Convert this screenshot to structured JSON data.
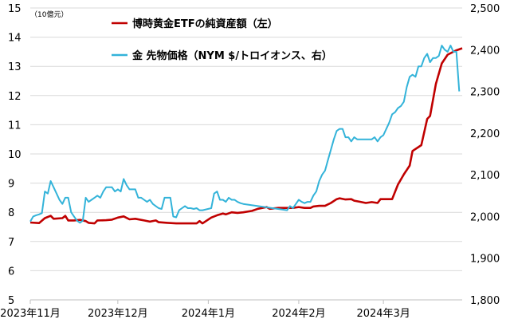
{
  "chart_data": {
    "type": "line",
    "unit_label": "（10億元）",
    "grid": true,
    "legend_position": "top",
    "y_left": {
      "min": 5,
      "max": 15,
      "ticks": [
        "5",
        "6",
        "7",
        "8",
        "9",
        "10",
        "11",
        "12",
        "13",
        "14",
        "15"
      ]
    },
    "y_right": {
      "min": 1800,
      "max": 2500,
      "ticks": [
        "1,800",
        "1,900",
        "2,000",
        "2,100",
        "2,200",
        "2,300",
        "2,400",
        "2,500"
      ]
    },
    "x_ticks": [
      {
        "date": "2023-11-01",
        "label": "2023年11月"
      },
      {
        "date": "2023-12-01",
        "label": "2023年12月"
      },
      {
        "date": "2024-01-01",
        "label": "2024年1月"
      },
      {
        "date": "2024-02-01",
        "label": "2024年2月"
      },
      {
        "date": "2024-03-01",
        "label": "2024年3月"
      }
    ],
    "x_range": [
      "2023-11-01",
      "2024-03-28"
    ],
    "series": [
      {
        "name": "博時黄金ETFの純資産額（左）",
        "axis": "left",
        "color": "#c00000",
        "points": [
          [
            "2023-11-01",
            7.65
          ],
          [
            "2023-11-04",
            7.63
          ],
          [
            "2023-11-06",
            7.8
          ],
          [
            "2023-11-08",
            7.88
          ],
          [
            "2023-11-09",
            7.78
          ],
          [
            "2023-11-12",
            7.8
          ],
          [
            "2023-11-13",
            7.88
          ],
          [
            "2023-11-14",
            7.72
          ],
          [
            "2023-11-16",
            7.72
          ],
          [
            "2023-11-18",
            7.74
          ],
          [
            "2023-11-20",
            7.7
          ],
          [
            "2023-11-21",
            7.64
          ],
          [
            "2023-11-23",
            7.62
          ],
          [
            "2023-11-24",
            7.72
          ],
          [
            "2023-11-27",
            7.73
          ],
          [
            "2023-11-29",
            7.75
          ],
          [
            "2023-12-01",
            7.82
          ],
          [
            "2023-12-03",
            7.86
          ],
          [
            "2023-12-05",
            7.76
          ],
          [
            "2023-12-07",
            7.78
          ],
          [
            "2023-12-10",
            7.72
          ],
          [
            "2023-12-12",
            7.68
          ],
          [
            "2023-12-14",
            7.72
          ],
          [
            "2023-12-15",
            7.66
          ],
          [
            "2023-12-18",
            7.64
          ],
          [
            "2023-12-21",
            7.62
          ],
          [
            "2023-12-25",
            7.62
          ],
          [
            "2023-12-28",
            7.62
          ],
          [
            "2023-12-29",
            7.7
          ],
          [
            "2023-12-30",
            7.62
          ],
          [
            "2024-01-02",
            7.82
          ],
          [
            "2024-01-04",
            7.9
          ],
          [
            "2024-01-06",
            7.96
          ],
          [
            "2024-01-07",
            7.93
          ],
          [
            "2024-01-09",
            8.0
          ],
          [
            "2024-01-11",
            7.98
          ],
          [
            "2024-01-13",
            8.0
          ],
          [
            "2024-01-16",
            8.05
          ],
          [
            "2024-01-18",
            8.12
          ],
          [
            "2024-01-21",
            8.18
          ],
          [
            "2024-01-22",
            8.12
          ],
          [
            "2024-01-25",
            8.15
          ],
          [
            "2024-01-30",
            8.15
          ],
          [
            "2024-02-01",
            8.18
          ],
          [
            "2024-02-03",
            8.15
          ],
          [
            "2024-02-05",
            8.15
          ],
          [
            "2024-02-06",
            8.2
          ],
          [
            "2024-02-08",
            8.22
          ],
          [
            "2024-02-10",
            8.22
          ],
          [
            "2024-02-12",
            8.32
          ],
          [
            "2024-02-14",
            8.45
          ],
          [
            "2024-02-15",
            8.48
          ],
          [
            "2024-02-17",
            8.44
          ],
          [
            "2024-02-19",
            8.45
          ],
          [
            "2024-02-20",
            8.4
          ],
          [
            "2024-02-22",
            8.36
          ],
          [
            "2024-02-24",
            8.32
          ],
          [
            "2024-02-26",
            8.35
          ],
          [
            "2024-02-28",
            8.32
          ],
          [
            "2024-02-29",
            8.45
          ],
          [
            "2024-03-04",
            8.45
          ],
          [
            "2024-03-06",
            8.95
          ],
          [
            "2024-03-08",
            9.3
          ],
          [
            "2024-03-10",
            9.6
          ],
          [
            "2024-03-11",
            10.1
          ],
          [
            "2024-03-14",
            10.3
          ],
          [
            "2024-03-16",
            11.2
          ],
          [
            "2024-03-17",
            11.3
          ],
          [
            "2024-03-19",
            12.4
          ],
          [
            "2024-03-21",
            13.1
          ],
          [
            "2024-03-23",
            13.4
          ],
          [
            "2024-03-25",
            13.5
          ],
          [
            "2024-03-26",
            13.55
          ],
          [
            "2024-03-28",
            13.62
          ]
        ]
      },
      {
        "name": "金 先物価格（NYM $/トロイオンス、右）",
        "axis": "right",
        "color": "#33b3d9",
        "points": [
          [
            "2023-11-01",
            1988
          ],
          [
            "2023-11-02",
            2000
          ],
          [
            "2023-11-03",
            2003
          ],
          [
            "2023-11-04",
            2005
          ],
          [
            "2023-11-05",
            2008
          ],
          [
            "2023-11-06",
            2060
          ],
          [
            "2023-11-07",
            2055
          ],
          [
            "2023-11-08",
            2085
          ],
          [
            "2023-11-09",
            2070
          ],
          [
            "2023-11-10",
            2055
          ],
          [
            "2023-11-11",
            2040
          ],
          [
            "2023-11-12",
            2030
          ],
          [
            "2023-11-13",
            2045
          ],
          [
            "2023-11-14",
            2045
          ],
          [
            "2023-11-15",
            2010
          ],
          [
            "2023-11-16",
            2000
          ],
          [
            "2023-11-17",
            1990
          ],
          [
            "2023-11-18",
            1985
          ],
          [
            "2023-11-19",
            1990
          ],
          [
            "2023-11-20",
            2045
          ],
          [
            "2023-11-21",
            2035
          ],
          [
            "2023-11-22",
            2040
          ],
          [
            "2023-11-23",
            2045
          ],
          [
            "2023-11-24",
            2050
          ],
          [
            "2023-11-25",
            2045
          ],
          [
            "2023-11-26",
            2060
          ],
          [
            "2023-11-27",
            2070
          ],
          [
            "2023-11-28",
            2070
          ],
          [
            "2023-11-29",
            2070
          ],
          [
            "2023-11-30",
            2060
          ],
          [
            "2023-12-01",
            2065
          ],
          [
            "2023-12-02",
            2060
          ],
          [
            "2023-12-03",
            2090
          ],
          [
            "2023-12-04",
            2075
          ],
          [
            "2023-12-05",
            2065
          ],
          [
            "2023-12-06",
            2065
          ],
          [
            "2023-12-07",
            2065
          ],
          [
            "2023-12-08",
            2045
          ],
          [
            "2023-12-09",
            2045
          ],
          [
            "2023-12-10",
            2040
          ],
          [
            "2023-12-11",
            2035
          ],
          [
            "2023-12-12",
            2040
          ],
          [
            "2023-12-13",
            2030
          ],
          [
            "2023-12-14",
            2025
          ],
          [
            "2023-12-15",
            2020
          ],
          [
            "2023-12-16",
            2018
          ],
          [
            "2023-12-17",
            2045
          ],
          [
            "2023-12-18",
            2045
          ],
          [
            "2023-12-19",
            2045
          ],
          [
            "2023-12-20",
            2000
          ],
          [
            "2023-12-21",
            1998
          ],
          [
            "2023-12-22",
            2015
          ],
          [
            "2023-12-23",
            2020
          ],
          [
            "2023-12-24",
            2025
          ],
          [
            "2023-12-25",
            2020
          ],
          [
            "2023-12-26",
            2020
          ],
          [
            "2023-12-27",
            2018
          ],
          [
            "2023-12-28",
            2020
          ],
          [
            "2023-12-29",
            2015
          ],
          [
            "2023-12-30",
            2015
          ],
          [
            "2024-01-02",
            2020
          ],
          [
            "2024-01-03",
            2055
          ],
          [
            "2024-01-04",
            2060
          ],
          [
            "2024-01-05",
            2040
          ],
          [
            "2024-01-06",
            2040
          ],
          [
            "2024-01-07",
            2035
          ],
          [
            "2024-01-08",
            2045
          ],
          [
            "2024-01-09",
            2040
          ],
          [
            "2024-01-10",
            2040
          ],
          [
            "2024-01-11",
            2035
          ],
          [
            "2024-01-12",
            2032
          ],
          [
            "2024-01-13",
            2030
          ],
          [
            "2024-01-28",
            2015
          ],
          [
            "2024-01-29",
            2025
          ],
          [
            "2024-01-30",
            2020
          ],
          [
            "2024-01-31",
            2030
          ],
          [
            "2024-02-01",
            2040
          ],
          [
            "2024-02-02",
            2035
          ],
          [
            "2024-02-03",
            2032
          ],
          [
            "2024-02-04",
            2035
          ],
          [
            "2024-02-05",
            2035
          ],
          [
            "2024-02-06",
            2050
          ],
          [
            "2024-02-07",
            2060
          ],
          [
            "2024-02-08",
            2085
          ],
          [
            "2024-02-09",
            2100
          ],
          [
            "2024-02-10",
            2110
          ],
          [
            "2024-02-11",
            2135
          ],
          [
            "2024-02-12",
            2160
          ],
          [
            "2024-02-13",
            2185
          ],
          [
            "2024-02-14",
            2205
          ],
          [
            "2024-02-15",
            2210
          ],
          [
            "2024-02-16",
            2210
          ],
          [
            "2024-02-17",
            2190
          ],
          [
            "2024-02-18",
            2190
          ],
          [
            "2024-02-19",
            2180
          ],
          [
            "2024-02-20",
            2190
          ],
          [
            "2024-02-21",
            2185
          ],
          [
            "2024-02-22",
            2185
          ],
          [
            "2024-02-23",
            2185
          ],
          [
            "2024-02-24",
            2185
          ],
          [
            "2024-02-25",
            2185
          ],
          [
            "2024-02-26",
            2185
          ],
          [
            "2024-02-27",
            2190
          ],
          [
            "2024-02-28",
            2180
          ],
          [
            "2024-02-29",
            2190
          ],
          [
            "2024-03-01",
            2195
          ],
          [
            "2024-03-02",
            2210
          ],
          [
            "2024-03-03",
            2225
          ],
          [
            "2024-03-04",
            2245
          ],
          [
            "2024-03-05",
            2250
          ],
          [
            "2024-03-06",
            2260
          ],
          [
            "2024-03-07",
            2265
          ],
          [
            "2024-03-08",
            2275
          ],
          [
            "2024-03-09",
            2310
          ],
          [
            "2024-03-10",
            2335
          ],
          [
            "2024-03-11",
            2340
          ],
          [
            "2024-03-12",
            2335
          ],
          [
            "2024-03-13",
            2360
          ],
          [
            "2024-03-14",
            2360
          ],
          [
            "2024-03-15",
            2380
          ],
          [
            "2024-03-16",
            2390
          ],
          [
            "2024-03-17",
            2370
          ],
          [
            "2024-03-18",
            2380
          ],
          [
            "2024-03-19",
            2380
          ],
          [
            "2024-03-20",
            2385
          ],
          [
            "2024-03-21",
            2410
          ],
          [
            "2024-03-22",
            2400
          ],
          [
            "2024-03-23",
            2395
          ],
          [
            "2024-03-24",
            2410
          ],
          [
            "2024-03-25",
            2395
          ],
          [
            "2024-03-26",
            2395
          ],
          [
            "2024-03-27",
            2300
          ]
        ]
      }
    ]
  }
}
